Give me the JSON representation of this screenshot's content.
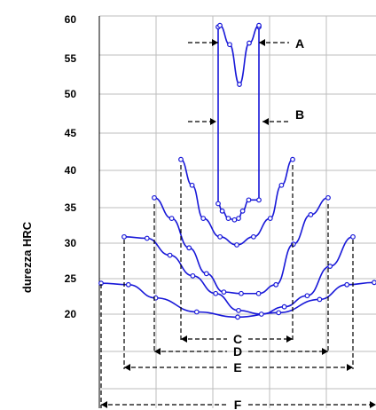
{
  "chart_data": {
    "type": "line",
    "ylabel": "durezza HRC",
    "xlabel": "",
    "ylim": [
      20,
      60
    ],
    "y_ticks": [
      "60",
      "55",
      "50",
      "45",
      "40",
      "35",
      "30",
      "25",
      "20"
    ],
    "grid": true,
    "series": [
      {
        "x": [
          0.0,
          0.1,
          0.2,
          0.35,
          0.5,
          0.65,
          0.8,
          0.9,
          1.0
        ],
        "values": [
          24.2,
          24.0,
          22.2,
          20.3,
          19.6,
          20.2,
          22.0,
          24.0,
          24.3
        ]
      },
      {
        "x": [
          0.0,
          0.1,
          0.2,
          0.3,
          0.4,
          0.5,
          0.6,
          0.7,
          0.8,
          0.9,
          1.0
        ],
        "values": [
          30.5,
          30.3,
          28.0,
          25.2,
          22.8,
          20.5,
          20.0,
          21.0,
          22.5,
          26.5,
          30.5
        ]
      },
      {
        "x": [
          0.0,
          0.1,
          0.2,
          0.3,
          0.4,
          0.5,
          0.6,
          0.7,
          0.8,
          0.9,
          1.0
        ],
        "values": [
          35.8,
          33.0,
          29.0,
          25.5,
          23.0,
          22.8,
          22.8,
          24.0,
          29.5,
          33.5,
          35.8
        ]
      },
      {
        "x": [
          0.0,
          0.1,
          0.2,
          0.35,
          0.5,
          0.65,
          0.8,
          0.9,
          1.0
        ],
        "values": [
          41.0,
          37.5,
          33.0,
          30.5,
          29.4,
          30.5,
          33.0,
          37.5,
          41.0
        ]
      },
      {
        "x": [
          0.0,
          0.1,
          0.25,
          0.4,
          0.5,
          0.6,
          0.75,
          0.9,
          1.0
        ],
        "values": [
          35.0,
          34.0,
          33.0,
          32.8,
          33.0,
          34.0,
          35.5,
          59.0,
          59.0
        ]
      },
      {
        "x": [
          0.0,
          0.25,
          0.5,
          0.75,
          1.0
        ],
        "values": [
          59.2,
          56.6,
          51.2,
          56.8,
          59.2
        ]
      }
    ],
    "annotations": [
      "A",
      "B",
      "C",
      "D",
      "E",
      "F"
    ]
  },
  "colors": {
    "line": "#1818d8",
    "grid": "#bdbdbd",
    "text": "#000000"
  }
}
